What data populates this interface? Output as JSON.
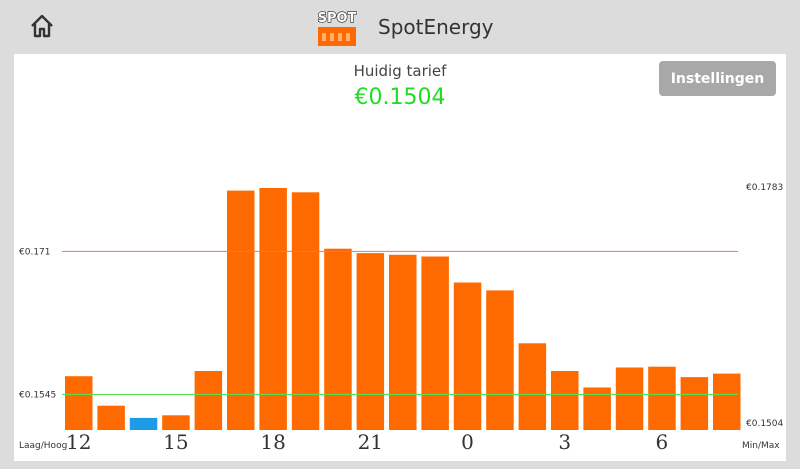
{
  "header": {
    "title": "SpotEnergy",
    "home_icon": "home-icon",
    "logo_text": "SPOT"
  },
  "main": {
    "tariff_label": "Huidig tarief",
    "tariff_value": "€0.1504",
    "settings_label": "Instellingen"
  },
  "colors": {
    "bar": "#ff6a00",
    "current_bar": "#1e9be8",
    "high_line": "#f07070",
    "low_line": "#55dd55",
    "tariff": "#22dd22"
  },
  "chart_data": {
    "type": "bar",
    "x": [
      12,
      13,
      14,
      15,
      16,
      17,
      18,
      19,
      20,
      21,
      22,
      23,
      0,
      1,
      2,
      3,
      4,
      5,
      6,
      7,
      8
    ],
    "values": [
      0.1566,
      0.1532,
      0.1518,
      0.1521,
      0.1572,
      0.178,
      0.1783,
      0.1778,
      0.1713,
      0.1708,
      0.1706,
      0.1704,
      0.1674,
      0.1665,
      0.1604,
      0.1572,
      0.1553,
      0.1576,
      0.1577,
      0.1565,
      0.1569
    ],
    "current_index": 2,
    "x_tick_labels": [
      "12",
      "15",
      "18",
      "21",
      "0",
      "3",
      "6"
    ],
    "high_line": 0.171,
    "low_line": 0.1545,
    "high_line_label": "€0.171",
    "low_line_label": "€0.1545",
    "max_label": "€0.1783",
    "min_label": "€0.1504",
    "left_axis_caption": "Laag/Hoog",
    "right_axis_caption": "Min/Max",
    "ylim": [
      0.1504,
      0.1783
    ]
  }
}
